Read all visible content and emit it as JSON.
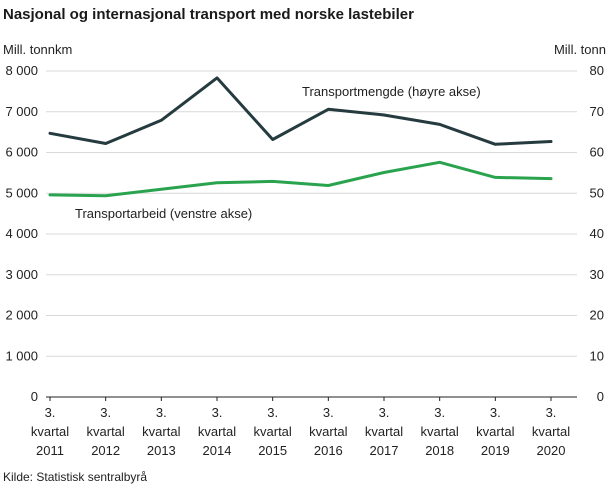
{
  "chart_data": {
    "type": "line",
    "title": "Nasjonal og internasjonal transport med norske lastebiler",
    "ylabel_left": "Mill. tonnkm",
    "ylabel_right": "Mill. tonn",
    "source": "Kilde: Statistisk sentralbyrå",
    "ylim_left": [
      0,
      8000
    ],
    "ylim_right": [
      0,
      80
    ],
    "yticks_left": [
      "0",
      "1 000",
      "2 000",
      "3 000",
      "4 000",
      "5 000",
      "6 000",
      "7 000",
      "8 000"
    ],
    "yticks_right": [
      "0",
      "10",
      "20",
      "30",
      "40",
      "50",
      "60",
      "70",
      "80"
    ],
    "categories": [
      [
        "3.",
        "kvartal",
        "2011"
      ],
      [
        "3.",
        "kvartal",
        "2012"
      ],
      [
        "3.",
        "kvartal",
        "2013"
      ],
      [
        "3.",
        "kvartal",
        "2014"
      ],
      [
        "3.",
        "kvartal",
        "2015"
      ],
      [
        "3.",
        "kvartal",
        "2016"
      ],
      [
        "3.",
        "kvartal",
        "2017"
      ],
      [
        "3.",
        "kvartal",
        "2018"
      ],
      [
        "3.",
        "kvartal",
        "2019"
      ],
      [
        "3.",
        "kvartal",
        "2020"
      ]
    ],
    "grid": true,
    "series": [
      {
        "name": "Transportmengde  (høyre akse)",
        "axis": "right",
        "color": "#253b3f",
        "values": [
          64.7,
          62.2,
          67.9,
          78.3,
          63.2,
          70.6,
          69.2,
          66.9,
          62.0,
          62.7
        ]
      },
      {
        "name": "Transportarbeid  (venstre akse)",
        "axis": "left",
        "color": "#2aa34f",
        "values": [
          4960,
          4940,
          5100,
          5260,
          5290,
          5190,
          5510,
          5760,
          5390,
          5360
        ]
      }
    ]
  }
}
